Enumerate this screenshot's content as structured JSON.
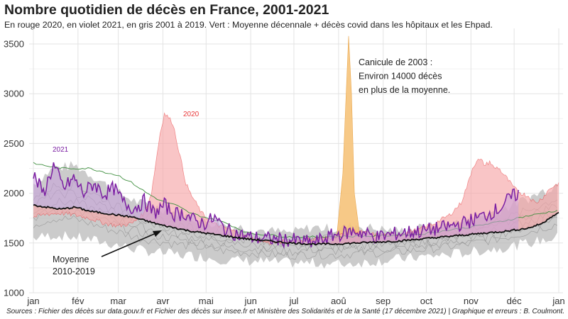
{
  "title": "Nombre quotidien de décès en France, 2001-2021",
  "subtitle": "En rouge 2020, en violet 2021, en gris 2001 à 2019. Vert : Moyenne décennale + décès covid dans les hôpitaux et les Ehpad.",
  "source": "Sources : Fichier des décès sur data.gouv.fr et Fichier des décès sur insee.fr et Ministère des Solidarités et de la Santé (17 décembre 2021) | Graphique et erreurs : B. Coulmont.",
  "colors": {
    "y2020": "#e8393a",
    "y2020_fill": "#f6a6a8",
    "y2021": "#7b1fa2",
    "y2021_fill": "#c9a0dc",
    "gray_band": "#b9b9b9",
    "gray_line": "#8c8c8c",
    "green": "#3f8f3f",
    "average": "#111111",
    "canicule_fill": "#f6c37a",
    "grid": "#e3e3e3"
  },
  "chart_data": {
    "type": "area",
    "xlabel": "",
    "ylabel": "",
    "ylim": [
      1000,
      3600
    ],
    "y_ticks": [
      1000,
      1500,
      2000,
      2500,
      3000,
      3500
    ],
    "x_ticks": [
      {
        "day": 1,
        "label": "jan"
      },
      {
        "day": 32,
        "label": "fév"
      },
      {
        "day": 60,
        "label": "mar"
      },
      {
        "day": 91,
        "label": "avr"
      },
      {
        "day": 121,
        "label": "mai"
      },
      {
        "day": 152,
        "label": "jun"
      },
      {
        "day": 182,
        "label": "jul"
      },
      {
        "day": 213,
        "label": "aoû"
      },
      {
        "day": 244,
        "label": "sep"
      },
      {
        "day": 274,
        "label": "oct"
      },
      {
        "day": 305,
        "label": "nov"
      },
      {
        "day": 335,
        "label": "déc"
      },
      {
        "day": 366,
        "label": "jan"
      }
    ],
    "grid": true,
    "legend": "none",
    "annotations": {
      "canicule": {
        "lines": [
          "Canicule de 2003 :",
          "Environ 14000 décès",
          "en plus de la moyenne."
        ]
      },
      "moyenne": {
        "lines": [
          "Moyenne",
          "2010-2019"
        ]
      },
      "label_2020": "2020",
      "label_2021": "2021"
    },
    "series": [
      {
        "name": "2001-2019",
        "kind": "band",
        "x": [
          1,
          15,
          30,
          45,
          60,
          75,
          90,
          105,
          120,
          135,
          150,
          165,
          180,
          195,
          210,
          225,
          240,
          255,
          270,
          285,
          300,
          315,
          330,
          345,
          366
        ],
        "low": [
          1550,
          1580,
          1560,
          1520,
          1480,
          1430,
          1400,
          1380,
          1360,
          1330,
          1320,
          1310,
          1300,
          1300,
          1290,
          1300,
          1320,
          1340,
          1360,
          1380,
          1400,
          1430,
          1460,
          1500,
          1560
        ],
        "high": [
          2100,
          2250,
          2280,
          2150,
          2000,
          1900,
          1850,
          1780,
          1720,
          1680,
          1650,
          1620,
          1600,
          1660,
          1640,
          1680,
          1640,
          1620,
          1650,
          1680,
          1720,
          1780,
          1860,
          1950,
          2100
        ]
      },
      {
        "name": "Canicule 2003",
        "kind": "spike",
        "x": [
          208,
          212,
          216,
          218,
          220,
          222,
          224,
          228
        ],
        "y": [
          1500,
          1600,
          2200,
          2900,
          3580,
          3000,
          2000,
          1550
        ]
      },
      {
        "name": "2020",
        "kind": "area",
        "x": [
          1,
          10,
          20,
          30,
          40,
          50,
          60,
          70,
          78,
          83,
          86,
          89,
          92,
          95,
          98,
          101,
          104,
          107,
          110,
          114,
          118,
          125,
          135,
          150,
          165,
          180,
          195,
          210,
          225,
          240,
          255,
          270,
          280,
          290,
          298,
          303,
          306,
          309,
          312,
          315,
          318,
          321,
          324,
          327,
          330,
          335,
          340,
          345,
          350,
          355,
          360,
          366
        ],
        "y": [
          1760,
          1790,
          1800,
          1780,
          1750,
          1700,
          1670,
          1700,
          1800,
          2000,
          2300,
          2600,
          2800,
          2760,
          2700,
          2500,
          2300,
          2100,
          2000,
          1900,
          1800,
          1700,
          1650,
          1560,
          1500,
          1520,
          1540,
          1560,
          1620,
          1580,
          1590,
          1640,
          1700,
          1780,
          1900,
          2100,
          2250,
          2330,
          2330,
          2280,
          2320,
          2250,
          2260,
          2200,
          2150,
          2050,
          2000,
          1970,
          1900,
          1960,
          2050,
          2100
        ]
      },
      {
        "name": "Moyenne décennale + covid",
        "kind": "line",
        "x": [
          1,
          20,
          40,
          60,
          70,
          80,
          90,
          100,
          110,
          120,
          135,
          150,
          180,
          240,
          270,
          300,
          320,
          340,
          355,
          366
        ],
        "y": [
          2300,
          2250,
          2250,
          2180,
          2100,
          2000,
          1920,
          1880,
          1800,
          1760,
          1700,
          1600,
          1560,
          1570,
          1590,
          1650,
          1700,
          1760,
          1800,
          1830
        ]
      },
      {
        "name": "2021",
        "kind": "area",
        "x": [
          1,
          8,
          15,
          22,
          29,
          36,
          43,
          50,
          57,
          64,
          71,
          78,
          85,
          92,
          99,
          106,
          113,
          120,
          127,
          134,
          141,
          150,
          165,
          180,
          195,
          210,
          225,
          240,
          255,
          270,
          285,
          300,
          315,
          325,
          332,
          338
        ],
        "y": [
          2180,
          2000,
          2280,
          2050,
          2150,
          2000,
          2100,
          1990,
          2050,
          1900,
          1850,
          1920,
          1800,
          1880,
          1790,
          1800,
          1720,
          1700,
          1750,
          1640,
          1600,
          1560,
          1540,
          1530,
          1500,
          1580,
          1620,
          1560,
          1600,
          1620,
          1650,
          1700,
          1780,
          1850,
          1950,
          2000
        ]
      },
      {
        "name": "Moyenne 2010-2019",
        "kind": "line",
        "x": [
          1,
          10,
          20,
          30,
          40,
          50,
          60,
          70,
          80,
          90,
          100,
          110,
          120,
          135,
          150,
          165,
          180,
          195,
          210,
          225,
          240,
          255,
          270,
          285,
          300,
          315,
          330,
          345,
          355,
          360,
          366
        ],
        "y": [
          1880,
          1860,
          1840,
          1860,
          1820,
          1800,
          1780,
          1760,
          1720,
          1680,
          1650,
          1620,
          1600,
          1570,
          1540,
          1520,
          1500,
          1490,
          1490,
          1500,
          1510,
          1520,
          1540,
          1560,
          1580,
          1600,
          1620,
          1650,
          1700,
          1760,
          1800
        ]
      }
    ]
  }
}
